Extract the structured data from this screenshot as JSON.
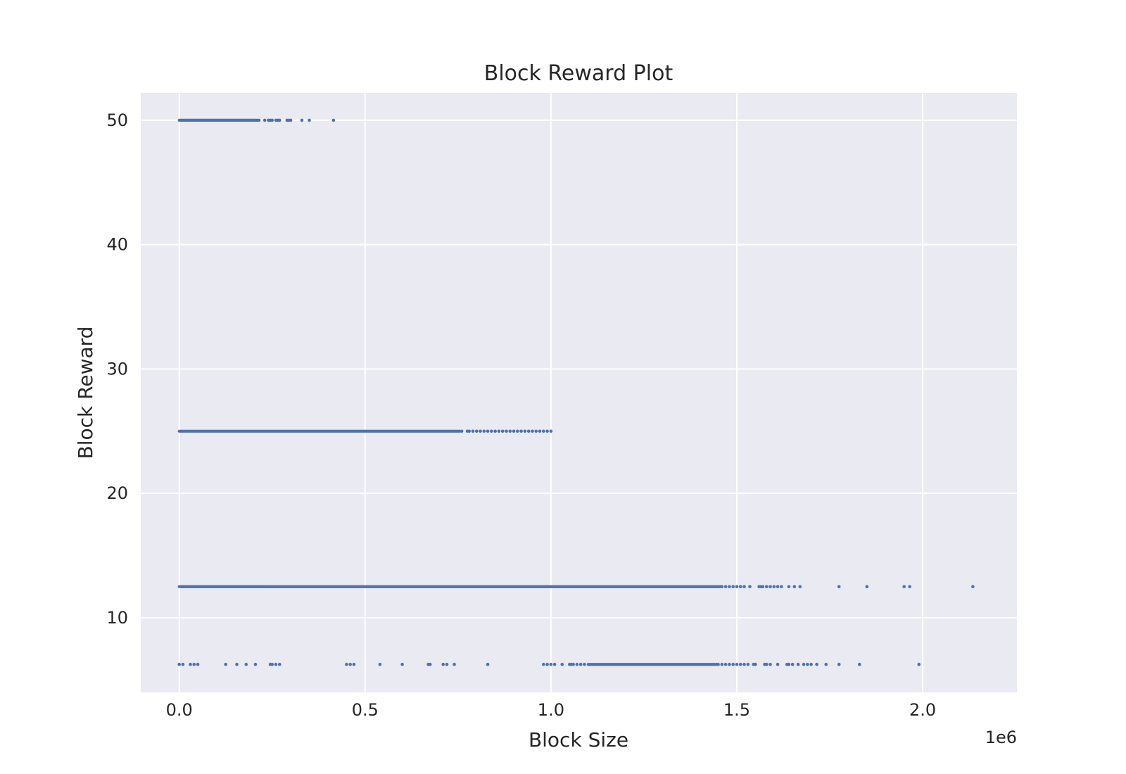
{
  "chart_data": {
    "type": "scatter",
    "title": "Block Reward Plot",
    "xlabel": "Block Size",
    "ylabel": "Block Reward",
    "x_offset_label": "1e6",
    "xlim": [
      -0.1035,
      2.2535
    ],
    "ylim": [
      4.0,
      52.2
    ],
    "xticks": [
      0.0,
      0.5,
      1.0,
      1.5,
      2.0
    ],
    "xtick_labels": [
      "0.0",
      "0.5",
      "1.0",
      "1.5",
      "2.0"
    ],
    "yticks": [
      10,
      20,
      30,
      40,
      50
    ],
    "ytick_labels": [
      "10",
      "20",
      "30",
      "40",
      "50"
    ],
    "grid": true,
    "colors": {
      "background": "#eaeaf2",
      "grid": "#ffffff",
      "point": "#4c72b0",
      "text": "#262626"
    },
    "series": [
      {
        "y": 50,
        "dense_ranges": [
          [
            0.0,
            0.215
          ]
        ],
        "x": [
          0.23,
          0.24,
          0.245,
          0.25,
          0.26,
          0.265,
          0.27,
          0.29,
          0.295,
          0.3,
          0.33,
          0.35,
          0.415
        ]
      },
      {
        "y": 25,
        "dense_ranges": [
          [
            0.0,
            0.755
          ]
        ],
        "x": [
          0.76,
          0.775,
          0.78,
          0.79,
          0.8,
          0.81,
          0.82,
          0.83,
          0.84,
          0.85,
          0.86,
          0.87,
          0.88,
          0.89,
          0.9,
          0.91,
          0.92,
          0.93,
          0.94,
          0.95,
          0.96,
          0.97,
          0.98,
          0.99,
          1.0
        ]
      },
      {
        "y": 12.5,
        "dense_ranges": [
          [
            0.0,
            1.455
          ]
        ],
        "x": [
          1.46,
          1.47,
          1.48,
          1.49,
          1.5,
          1.51,
          1.52,
          1.535,
          1.56,
          1.565,
          1.57,
          1.58,
          1.59,
          1.6,
          1.61,
          1.62,
          1.64,
          1.655,
          1.67,
          1.775,
          1.85,
          1.95,
          1.965,
          2.135
        ]
      },
      {
        "y": 6.25,
        "dense_ranges": [
          [
            1.1,
            1.44
          ]
        ],
        "x": [
          0.0,
          0.01,
          0.03,
          0.04,
          0.05,
          0.125,
          0.155,
          0.18,
          0.205,
          0.245,
          0.25,
          0.26,
          0.27,
          0.45,
          0.46,
          0.47,
          0.54,
          0.6,
          0.67,
          0.675,
          0.71,
          0.72,
          0.74,
          0.83,
          0.98,
          0.99,
          1.0,
          1.01,
          1.03,
          1.05,
          1.055,
          1.06,
          1.07,
          1.08,
          1.09,
          1.445,
          1.45,
          1.46,
          1.47,
          1.48,
          1.49,
          1.5,
          1.51,
          1.52,
          1.53,
          1.545,
          1.55,
          1.575,
          1.58,
          1.59,
          1.61,
          1.635,
          1.64,
          1.65,
          1.665,
          1.68,
          1.69,
          1.7,
          1.715,
          1.74,
          1.775,
          1.83,
          1.99
        ]
      }
    ]
  }
}
